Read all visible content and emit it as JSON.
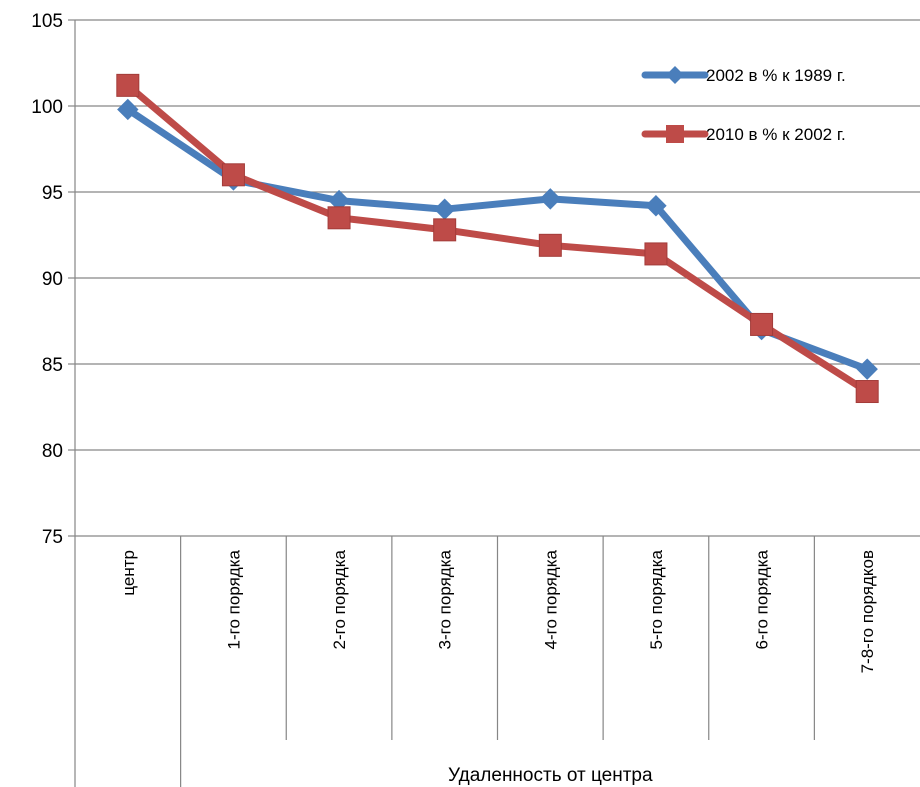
{
  "chart_data": {
    "type": "line",
    "categories": [
      "центр",
      "1-го порядка",
      "2-го порядка",
      "3-го порядка",
      "4-го порядка",
      "5-го порядка",
      "6-го порядка",
      "7-8-го порядков"
    ],
    "series": [
      {
        "name": "2002 в % к 1989 г.",
        "values": [
          99.8,
          95.7,
          94.5,
          94.0,
          94.6,
          94.2,
          87.0,
          84.7
        ],
        "color": "#4a7ebb",
        "marker": "diamond"
      },
      {
        "name": "2010 в % к 2002 г.",
        "values": [
          101.2,
          96.0,
          93.5,
          92.8,
          91.9,
          91.4,
          87.3,
          83.4
        ],
        "color": "#be4b48",
        "marker": "square"
      }
    ],
    "title": "",
    "xlabel": "Удаленность от центра",
    "ylabel": "",
    "ylim": [
      75,
      105
    ],
    "yticks": [
      75,
      80,
      85,
      90,
      95,
      100,
      105
    ],
    "grid": "horizontal",
    "legend_position": "top-right"
  }
}
